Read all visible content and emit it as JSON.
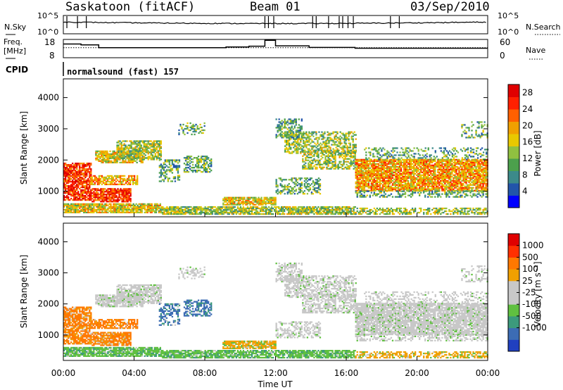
{
  "header": {
    "station": "Saskatoon (fitACF)",
    "beam": "Beam 01",
    "date": "03/Sep/2010"
  },
  "strips": {
    "nsky_label": "N.Sky",
    "nsky_ticks": [
      "10^5",
      "10^0"
    ],
    "nsearch_label": "N.Search",
    "nsearch_ticks": [
      "10^5",
      "10^0"
    ],
    "freq_label_1": "Freq.",
    "freq_label_2": "[MHz]",
    "freq_ticks": [
      "18",
      "8"
    ],
    "nave_label": "Nave",
    "nave_ticks": [
      "60",
      "0"
    ],
    "cpid_label": "CPID",
    "cpid_text": "normalsound (fast) 157"
  },
  "chart_data": [
    {
      "type": "heatmap",
      "name": "power",
      "xlabel": "Time UT",
      "ylabel": "Slant Range [km]",
      "xlim": [
        0,
        24
      ],
      "ylim": [
        180,
        4600
      ],
      "y_ticks": [
        "4000",
        "3000",
        "2000",
        "1000"
      ],
      "x_ticks": [
        "00:00",
        "04:00",
        "08:00",
        "12:00",
        "16:00",
        "20:00",
        "00:00"
      ],
      "colorbar": {
        "label": "Power [dB]",
        "ticks": [
          "28",
          "24",
          "20",
          "16",
          "12",
          "8",
          "4"
        ],
        "range": [
          0,
          30
        ],
        "colors": [
          "#0000ff",
          "#2255aa",
          "#3c8a8a",
          "#4ca04c",
          "#90c040",
          "#e8c800",
          "#f0a000",
          "#ff6000",
          "#ff2000",
          "#e00000"
        ]
      }
    },
    {
      "type": "heatmap",
      "name": "velocity",
      "xlabel": "Time UT",
      "ylabel": "Slant Range [km]",
      "xlim": [
        0,
        24
      ],
      "ylim": [
        180,
        4600
      ],
      "y_ticks": [
        "4000",
        "3000",
        "2000",
        "1000"
      ],
      "x_ticks": [
        "00:00",
        "04:00",
        "08:00",
        "12:00",
        "16:00",
        "20:00",
        "00:00"
      ],
      "colorbar": {
        "label": "Velocity [m s⁻¹]",
        "ticks": [
          "1000",
          "500",
          "100",
          "25",
          "-25",
          "-100",
          "-500",
          "-1000"
        ],
        "colors": [
          "#2040c0",
          "#3c6cb4",
          "#3c9a7c",
          "#60c040",
          "#c8c8c8",
          "#c8c8c8",
          "#f0a000",
          "#ff7800",
          "#ff3000",
          "#e00000"
        ]
      }
    }
  ]
}
